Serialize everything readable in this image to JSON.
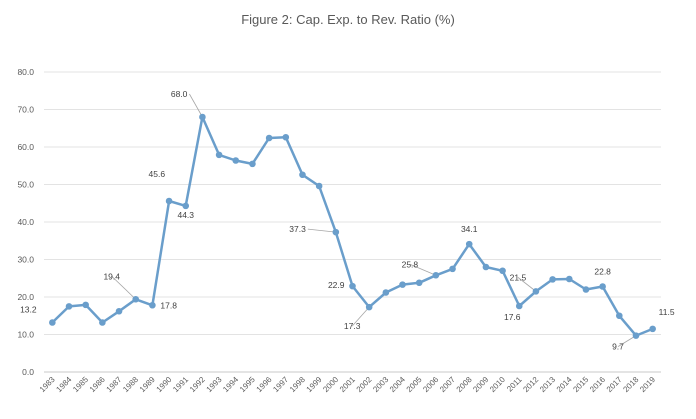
{
  "chart_data": {
    "type": "line",
    "title": "Figure 2: Cap. Exp. to Rev. Ratio (%)",
    "xlabel": "",
    "ylabel": "",
    "ylim": [
      0,
      80
    ],
    "yticks": [
      "0.0",
      "10.0",
      "20.0",
      "30.0",
      "40.0",
      "50.0",
      "60.0",
      "70.0",
      "80.0"
    ],
    "grid": "horizontal",
    "legend": "none",
    "line_color": "#6a9ecb",
    "grid_color": "#e3e3e3",
    "categories": [
      "1983",
      "1984",
      "1985",
      "1986",
      "1987",
      "1988",
      "1989",
      "1990",
      "1991",
      "1992",
      "1993",
      "1994",
      "1995",
      "1996",
      "1997",
      "1998",
      "1999",
      "2000",
      "2001",
      "2002",
      "2003",
      "2004",
      "2005",
      "2006",
      "2007",
      "2008",
      "2009",
      "2010",
      "2011",
      "2012",
      "2013",
      "2014",
      "2015",
      "2016",
      "2017",
      "2018",
      "2019"
    ],
    "series": [
      {
        "name": "Cap. Exp. to Rev. Ratio (%)",
        "values": [
          13.2,
          17.5,
          17.9,
          13.2,
          16.2,
          19.4,
          17.8,
          45.6,
          44.3,
          68.0,
          57.9,
          56.4,
          55.5,
          62.4,
          62.6,
          52.6,
          49.6,
          37.3,
          22.9,
          17.3,
          21.2,
          23.3,
          23.8,
          25.8,
          27.5,
          34.1,
          28.0,
          27.0,
          17.6,
          21.5,
          24.7,
          24.8,
          22.0,
          22.8,
          15.0,
          9.7,
          11.5
        ]
      }
    ],
    "data_labels": [
      {
        "category": "1983",
        "text": "13.2"
      },
      {
        "category": "1988",
        "text": "19.4"
      },
      {
        "category": "1989",
        "text": "17.8"
      },
      {
        "category": "1990",
        "text": "45.6"
      },
      {
        "category": "1991",
        "text": "44.3"
      },
      {
        "category": "1992",
        "text": "68.0"
      },
      {
        "category": "2000",
        "text": "37.3"
      },
      {
        "category": "2001",
        "text": "22.9"
      },
      {
        "category": "2002",
        "text": "17.3"
      },
      {
        "category": "2006",
        "text": "25.8"
      },
      {
        "category": "2008",
        "text": "34.1"
      },
      {
        "category": "2011",
        "text": "17.6"
      },
      {
        "category": "2012",
        "text": "21.5"
      },
      {
        "category": "2016",
        "text": "22.8"
      },
      {
        "category": "2018",
        "text": "9.7"
      },
      {
        "category": "2019",
        "text": "11.5"
      }
    ]
  }
}
